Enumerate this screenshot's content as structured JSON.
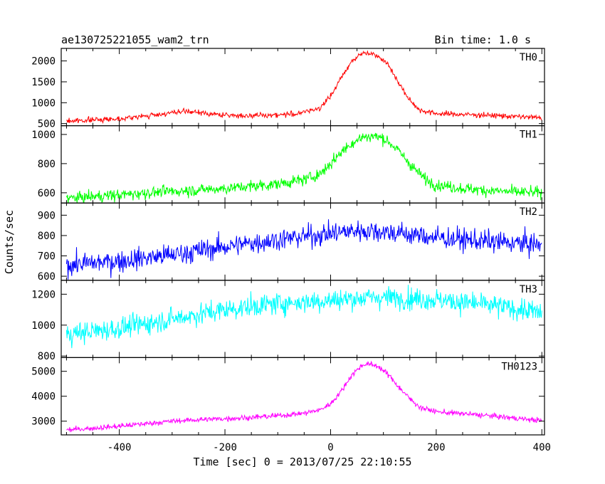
{
  "chart_data": {
    "type": "line",
    "title": "ae130725221055_wam2_trn",
    "bin_time_label": "Bin time: 1.0 s",
    "xlabel": "Time [sec] 0 = 2013/07/25 22:10:55",
    "ylabel": "Counts/sec",
    "xlim": [
      -510,
      405
    ],
    "x_ticks": [
      -400,
      -200,
      0,
      200,
      400
    ],
    "grid": false,
    "series": [
      {
        "name": "TH0",
        "color": "#ff0000",
        "ylim": [
          450,
          2300
        ],
        "y_ticks": [
          500,
          1000,
          1500,
          2000
        ],
        "noise": 45,
        "x": [
          -500,
          -450,
          -400,
          -350,
          -300,
          -270,
          -240,
          -200,
          -150,
          -100,
          -60,
          -20,
          0,
          20,
          40,
          60,
          70,
          90,
          110,
          130,
          150,
          170,
          200,
          250,
          300,
          350,
          400
        ],
        "y": [
          560,
          590,
          620,
          680,
          760,
          790,
          750,
          700,
          690,
          710,
          740,
          880,
          1150,
          1600,
          2000,
          2180,
          2200,
          2130,
          1900,
          1450,
          1050,
          820,
          740,
          720,
          700,
          670,
          640
        ]
      },
      {
        "name": "TH1",
        "color": "#00ff00",
        "ylim": [
          530,
          1060
        ],
        "y_ticks": [
          600,
          800,
          1000
        ],
        "noise": 28,
        "x": [
          -500,
          -450,
          -400,
          -350,
          -300,
          -250,
          -200,
          -150,
          -100,
          -50,
          -20,
          0,
          20,
          40,
          60,
          80,
          100,
          120,
          140,
          160,
          180,
          200,
          250,
          300,
          350,
          400
        ],
        "y": [
          560,
          575,
          585,
          600,
          610,
          620,
          630,
          645,
          660,
          690,
          730,
          800,
          880,
          940,
          980,
          990,
          975,
          920,
          840,
          760,
          690,
          655,
          630,
          615,
          605,
          600
        ]
      },
      {
        "name": "TH2",
        "color": "#0000ff",
        "ylim": [
          580,
          960
        ],
        "y_ticks": [
          600,
          700,
          800,
          900
        ],
        "noise": 38,
        "x": [
          -500,
          -400,
          -300,
          -200,
          -100,
          0,
          50,
          100,
          150,
          200,
          300,
          400
        ],
        "y": [
          655,
          675,
          705,
          745,
          780,
          810,
          825,
          820,
          805,
          790,
          770,
          755
        ]
      },
      {
        "name": "TH3",
        "color": "#00ffff",
        "ylim": [
          790,
          1290
        ],
        "y_ticks": [
          800,
          1000,
          1200
        ],
        "noise": 50,
        "x": [
          -500,
          -400,
          -300,
          -200,
          -100,
          0,
          50,
          100,
          200,
          300,
          400
        ],
        "y": [
          940,
          980,
          1040,
          1100,
          1140,
          1160,
          1175,
          1180,
          1165,
          1130,
          1080
        ]
      },
      {
        "name": "TH0123",
        "color": "#ff00ff",
        "ylim": [
          2450,
          5550
        ],
        "y_ticks": [
          3000,
          4000,
          5000
        ],
        "noise": 75,
        "x": [
          -500,
          -450,
          -400,
          -350,
          -300,
          -250,
          -200,
          -150,
          -100,
          -50,
          -20,
          0,
          20,
          40,
          60,
          70,
          90,
          110,
          130,
          150,
          170,
          200,
          250,
          300,
          350,
          400
        ],
        "y": [
          2650,
          2720,
          2800,
          2900,
          3000,
          3060,
          3100,
          3150,
          3220,
          3320,
          3450,
          3700,
          4200,
          4850,
          5250,
          5300,
          5200,
          4850,
          4350,
          3900,
          3550,
          3380,
          3300,
          3220,
          3120,
          3020
        ]
      }
    ]
  }
}
